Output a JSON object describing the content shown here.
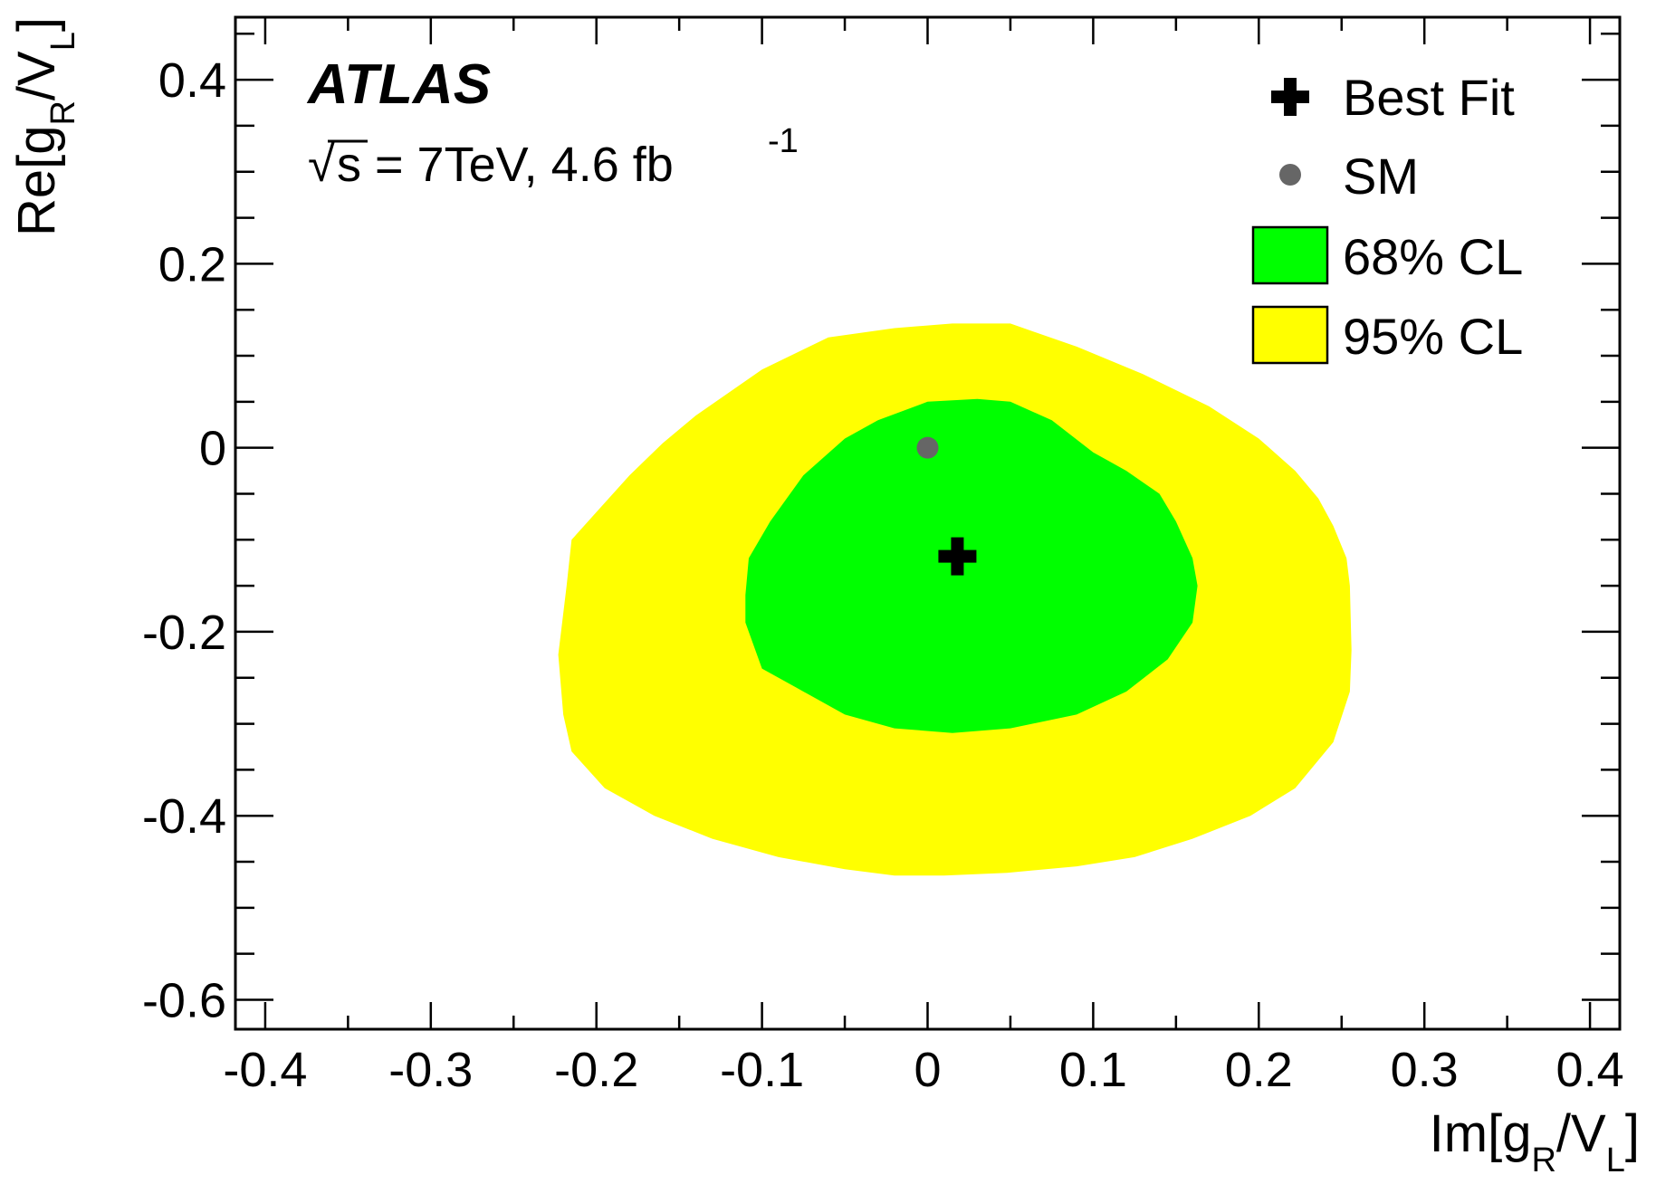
{
  "chart_data": {
    "type": "contour",
    "experiment_label": "ATLAS",
    "energy_label": {
      "root_symbol": "√",
      "text": "s = 7TeV, 4.6 fb",
      "superscript": "-1"
    },
    "xlabel": {
      "main": "Im[g",
      "sub1": "R",
      "mid": "/V",
      "sub2": "L",
      "end": "]"
    },
    "ylabel": {
      "main": "Re[g",
      "sub1": "R",
      "mid": "/V",
      "sub2": "L",
      "end": "]"
    },
    "xlim": [
      -0.418,
      0.418
    ],
    "ylim": [
      -0.632,
      0.468
    ],
    "x_ticks": [
      -0.4,
      -0.3,
      -0.2,
      -0.1,
      0,
      0.1,
      0.2,
      0.3,
      0.4
    ],
    "x_tick_labels": [
      "-0.4",
      "-0.3",
      "-0.2",
      "-0.1",
      "0",
      "0.1",
      "0.2",
      "0.3",
      "0.4"
    ],
    "y_ticks": [
      -0.6,
      -0.4,
      -0.2,
      0,
      0.2,
      0.4
    ],
    "y_tick_labels": [
      "-0.6",
      "-0.4",
      "-0.2",
      "0",
      "0.2",
      "0.4"
    ],
    "x_minor_step": 0.05,
    "y_minor_step": 0.05,
    "contours": [
      {
        "name": "95% CL",
        "color": "#ffff00",
        "points": [
          [
            -0.223,
            -0.225
          ],
          [
            -0.22,
            -0.29
          ],
          [
            -0.215,
            -0.33
          ],
          [
            -0.195,
            -0.37
          ],
          [
            -0.165,
            -0.4
          ],
          [
            -0.13,
            -0.425
          ],
          [
            -0.09,
            -0.445
          ],
          [
            -0.05,
            -0.458
          ],
          [
            -0.02,
            -0.465
          ],
          [
            0.01,
            -0.465
          ],
          [
            0.048,
            -0.462
          ],
          [
            0.09,
            -0.455
          ],
          [
            0.125,
            -0.445
          ],
          [
            0.16,
            -0.425
          ],
          [
            0.195,
            -0.4
          ],
          [
            0.222,
            -0.37
          ],
          [
            0.245,
            -0.32
          ],
          [
            0.255,
            -0.265
          ],
          [
            0.256,
            -0.22
          ],
          [
            0.255,
            -0.15
          ],
          [
            0.253,
            -0.12
          ],
          [
            0.245,
            -0.085
          ],
          [
            0.236,
            -0.055
          ],
          [
            0.222,
            -0.025
          ],
          [
            0.2,
            0.01
          ],
          [
            0.17,
            0.045
          ],
          [
            0.13,
            0.08
          ],
          [
            0.09,
            0.11
          ],
          [
            0.05,
            0.135
          ],
          [
            0.015,
            0.135
          ],
          [
            -0.02,
            0.13
          ],
          [
            -0.06,
            0.12
          ],
          [
            -0.1,
            0.085
          ],
          [
            -0.14,
            0.035
          ],
          [
            -0.16,
            0.005
          ],
          [
            -0.18,
            -0.03
          ],
          [
            -0.2,
            -0.07
          ],
          [
            -0.215,
            -0.1
          ],
          [
            -0.218,
            -0.15
          ]
        ]
      },
      {
        "name": "68% CL",
        "color": "#00ff00",
        "points": [
          [
            -0.11,
            -0.16
          ],
          [
            -0.11,
            -0.19
          ],
          [
            -0.1,
            -0.24
          ],
          [
            -0.08,
            -0.26
          ],
          [
            -0.05,
            -0.29
          ],
          [
            -0.02,
            -0.305
          ],
          [
            0.015,
            -0.31
          ],
          [
            0.05,
            -0.305
          ],
          [
            0.09,
            -0.29
          ],
          [
            0.12,
            -0.265
          ],
          [
            0.145,
            -0.23
          ],
          [
            0.16,
            -0.19
          ],
          [
            0.163,
            -0.15
          ],
          [
            0.16,
            -0.12
          ],
          [
            0.15,
            -0.08
          ],
          [
            0.14,
            -0.05
          ],
          [
            0.12,
            -0.025
          ],
          [
            0.1,
            -0.005
          ],
          [
            0.075,
            0.03
          ],
          [
            0.05,
            0.05
          ],
          [
            0.03,
            0.053
          ],
          [
            0.0,
            0.05
          ],
          [
            -0.03,
            0.03
          ],
          [
            -0.05,
            0.01
          ],
          [
            -0.075,
            -0.03
          ],
          [
            -0.095,
            -0.08
          ],
          [
            -0.108,
            -0.12
          ]
        ]
      }
    ],
    "points": [
      {
        "name": "SM",
        "x": 0.0,
        "y": 0.0,
        "marker": "circle",
        "color": "#666666"
      },
      {
        "name": "Best Fit",
        "x": 0.018,
        "y": -0.118,
        "marker": "cross",
        "color": "#000000"
      }
    ],
    "legend": {
      "position": "top-right",
      "entries": [
        {
          "label": "Best Fit",
          "marker": "cross",
          "color": "#000000"
        },
        {
          "label": "SM",
          "marker": "circle",
          "color": "#666666"
        },
        {
          "label": "68% CL",
          "marker": "box",
          "color": "#00ff00"
        },
        {
          "label": "95% CL",
          "marker": "box",
          "color": "#ffff00"
        }
      ]
    }
  }
}
